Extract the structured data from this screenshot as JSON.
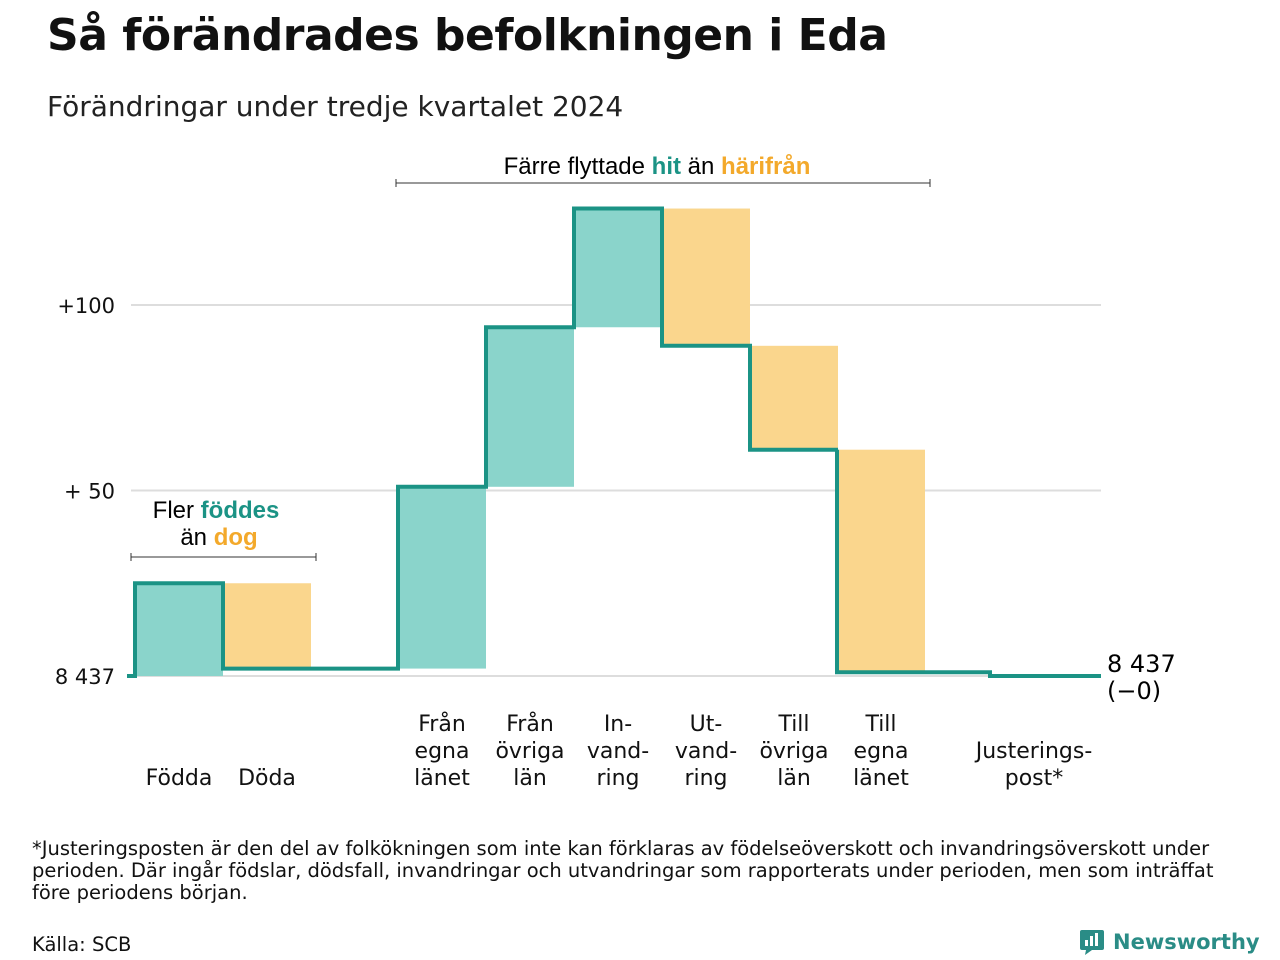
{
  "title": "Så förändrades befolkningen i Eda",
  "subtitle": "Förändringar under tredje kvartalet 2024",
  "colors": {
    "teal_line": "#1b9385",
    "teal_fill": "#8ad4cb",
    "orange_fill": "#fad68d",
    "teal_text": "#1b9385",
    "orange_text": "#f3a92b",
    "grid": "#dddddd"
  },
  "annotations": {
    "births": {
      "line1_prefix": "Fler",
      "line1_highlight": "föddes",
      "line2_prefix": "än",
      "line2_highlight": "dog"
    },
    "migration": {
      "prefix": "Färre flyttade",
      "highlight1": "hit",
      "middle": "än",
      "highlight2": "härifrån"
    }
  },
  "end_label": {
    "value": "8 437",
    "change": "(−0)"
  },
  "chart_data": {
    "type": "waterfall",
    "base_value": 8437,
    "y_tick_labels": [
      "8 437",
      "+ 50",
      "+100"
    ],
    "y_ticks": [
      0,
      50,
      100
    ],
    "ylim": [
      -8,
      130
    ],
    "grid": true,
    "categories": [
      {
        "label": [
          "Födda"
        ],
        "value": 25,
        "kind": "in"
      },
      {
        "label": [
          "Döda"
        ],
        "value": -23,
        "kind": "out"
      },
      {
        "label": [
          "Från",
          "egna",
          "länet"
        ],
        "value": 49,
        "kind": "in"
      },
      {
        "label": [
          "Från",
          "övriga",
          "län"
        ],
        "value": 43,
        "kind": "in"
      },
      {
        "label": [
          "In-",
          "vand-",
          "ring"
        ],
        "value": 32,
        "kind": "in"
      },
      {
        "label": [
          "Ut-",
          "vand-",
          "ring"
        ],
        "value": -37,
        "kind": "out"
      },
      {
        "label": [
          "Till",
          "övriga",
          "län"
        ],
        "value": -28,
        "kind": "out"
      },
      {
        "label": [
          "Till",
          "egna",
          "länet"
        ],
        "value": -60,
        "kind": "out"
      },
      {
        "label": [
          "Justerings-",
          "post*"
        ],
        "value": -1,
        "kind": "adjust"
      }
    ]
  },
  "footnote": "*Justeringsposten är den del av folkökningen som inte kan förklaras av födelseöverskott och invandringsöverskott under perioden. Där ingår födslar, dödsfall, invandringar och utvandringar som rapporterats under perioden, men som inträffat före periodens början.",
  "source": "Källa: SCB",
  "brand": "Newsworthy",
  "brand_icon": "newsworthy-logo-icon"
}
